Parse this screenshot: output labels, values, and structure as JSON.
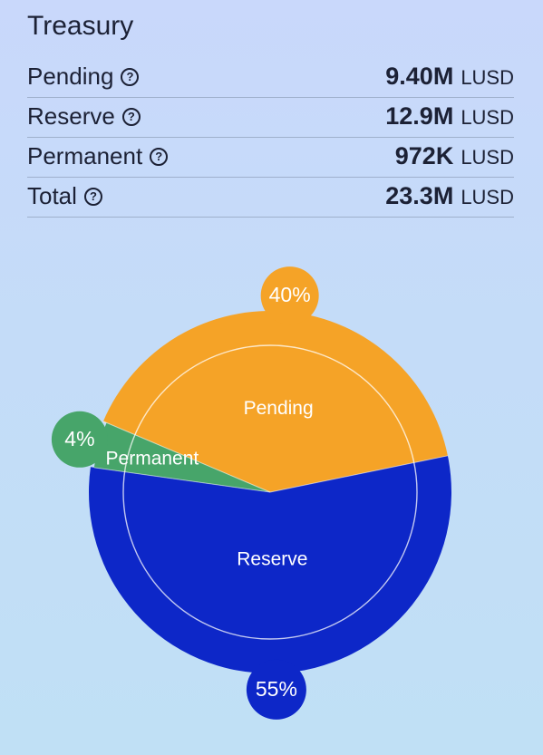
{
  "header": {
    "title": "Treasury"
  },
  "stats": [
    {
      "label": "Pending",
      "amount": "9.40M",
      "unit": "LUSD",
      "icon": "help-circle-icon"
    },
    {
      "label": "Reserve",
      "amount": "12.9M",
      "unit": "LUSD",
      "icon": "help-circle-icon"
    },
    {
      "label": "Permanent",
      "amount": "972K",
      "unit": "LUSD",
      "icon": "help-circle-icon"
    },
    {
      "label": "Total",
      "amount": "23.3M",
      "unit": "LUSD",
      "icon": "help-circle-icon"
    }
  ],
  "chart_data": {
    "type": "pie",
    "categories": [
      "Pending",
      "Reserve",
      "Permanent"
    ],
    "values": [
      9.4,
      12.9,
      0.972
    ],
    "units": "M LUSD",
    "percent_labels": [
      "40%",
      "55%",
      "4%"
    ],
    "colors": [
      "#f5a327",
      "#0d27c8",
      "#47a56a"
    ],
    "inner_ring": true,
    "legend": "none"
  }
}
